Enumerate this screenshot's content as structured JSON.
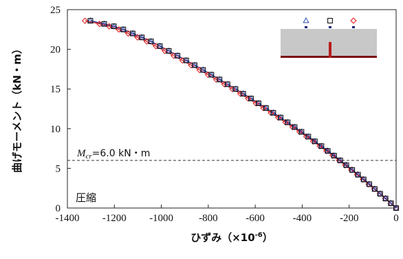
{
  "chart_data": {
    "type": "line",
    "xlabel": "ひずみ（×10",
    "xlabel_exp": "-6",
    "xlabel_close": "）",
    "ylabel": "曲げモーメント（kN・m）",
    "xlim": [
      -1400,
      0
    ],
    "ylim": [
      0,
      25
    ],
    "x_ticks": [
      "-1400",
      "-1200",
      "-1000",
      "-800",
      "-600",
      "-400",
      "-200",
      "0"
    ],
    "y_ticks": [
      "0",
      "5",
      "10",
      "15",
      "20",
      "25"
    ],
    "grid": false,
    "reference_line": {
      "y": 6.0,
      "label_main": "M",
      "label_sub": "cr",
      "label_value": "=6.0 kN・m"
    },
    "annotation": "圧縮",
    "colors": {
      "triangle": "#3a5ab8",
      "square": "#111111",
      "diamond": "#e02020",
      "line": "#1a237e",
      "line2": "#d32f2f"
    },
    "series": [
      {
        "marker": "triangle",
        "color": "#3a5ab8",
        "x": [
          0,
          -22,
          -45,
          -68,
          -91,
          -114,
          -138,
          -162,
          -187,
          -212,
          -238,
          -264,
          -291,
          -318,
          -346,
          -374,
          -403,
          -432,
          -462,
          -492,
          -523,
          -554,
          -586,
          -618,
          -651,
          -684,
          -718,
          -752,
          -787,
          -822,
          -858,
          -894,
          -931,
          -968,
          -1006,
          -1044,
          -1083,
          -1122,
          -1162,
          -1202,
          -1243,
          -1302
        ],
        "y": [
          0,
          0.6,
          1.2,
          1.8,
          2.4,
          3.0,
          3.6,
          4.2,
          4.8,
          5.4,
          6.0,
          6.6,
          7.2,
          7.8,
          8.4,
          9.0,
          9.6,
          10.2,
          10.8,
          11.4,
          12.0,
          12.6,
          13.2,
          13.8,
          14.4,
          15.0,
          15.6,
          16.2,
          16.8,
          17.4,
          18.0,
          18.6,
          19.2,
          19.8,
          20.4,
          21.0,
          21.5,
          22.0,
          22.5,
          22.9,
          23.2,
          23.6
        ]
      },
      {
        "marker": "square",
        "color": "#111111",
        "x": [
          0,
          -22,
          -45,
          -68,
          -91,
          -114,
          -138,
          -162,
          -187,
          -212,
          -238,
          -264,
          -291,
          -318,
          -346,
          -374,
          -403,
          -432,
          -462,
          -492,
          -523,
          -554,
          -586,
          -618,
          -651,
          -684,
          -718,
          -752,
          -787,
          -822,
          -858,
          -894,
          -931,
          -968,
          -1006,
          -1044,
          -1083,
          -1122,
          -1162,
          -1202,
          -1243,
          -1302
        ],
        "y": [
          0,
          0.6,
          1.2,
          1.8,
          2.4,
          3.0,
          3.6,
          4.2,
          4.8,
          5.4,
          6.0,
          6.6,
          7.2,
          7.8,
          8.4,
          9.0,
          9.6,
          10.2,
          10.8,
          11.4,
          12.0,
          12.6,
          13.2,
          13.8,
          14.4,
          15.0,
          15.6,
          16.2,
          16.8,
          17.4,
          18.0,
          18.6,
          19.2,
          19.8,
          20.4,
          21.0,
          21.5,
          22.0,
          22.5,
          22.9,
          23.2,
          23.6
        ]
      },
      {
        "marker": "diamond",
        "color": "#e02020",
        "x": [
          0,
          -23,
          -46,
          -69,
          -93,
          -117,
          -141,
          -166,
          -191,
          -217,
          -243,
          -270,
          -297,
          -325,
          -353,
          -382,
          -411,
          -441,
          -471,
          -502,
          -533,
          -565,
          -597,
          -630,
          -663,
          -697,
          -731,
          -766,
          -801,
          -837,
          -873,
          -910,
          -947,
          -985,
          -1023,
          -1062,
          -1101,
          -1141,
          -1181,
          -1222,
          -1263,
          -1325
        ],
        "y": [
          0,
          0.6,
          1.2,
          1.8,
          2.4,
          3.0,
          3.6,
          4.2,
          4.8,
          5.4,
          6.0,
          6.6,
          7.2,
          7.8,
          8.4,
          9.0,
          9.6,
          10.2,
          10.8,
          11.4,
          12.0,
          12.6,
          13.2,
          13.8,
          14.4,
          15.0,
          15.6,
          16.2,
          16.8,
          17.4,
          18.0,
          18.6,
          19.2,
          19.8,
          20.4,
          21.0,
          21.5,
          22.0,
          22.5,
          22.9,
          23.2,
          23.6
        ]
      }
    ],
    "legend": {
      "placement": "top-right",
      "markers": [
        "triangle",
        "square",
        "diamond"
      ],
      "beam_color": "#c8c8c8",
      "rebar_color": "#b71c1c",
      "base_color": "#7a1010"
    }
  }
}
